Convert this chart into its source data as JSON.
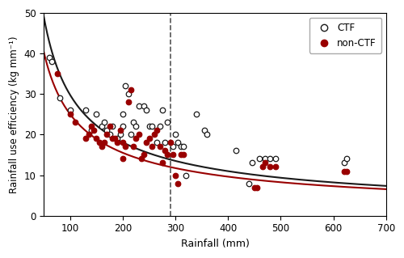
{
  "title": "",
  "xlabel": "Rainfall (mm)",
  "ylabel": "Rainfall use efficiency (kg mm⁻¹)",
  "xlim": [
    50,
    700
  ],
  "ylim": [
    0,
    50
  ],
  "xticks": [
    100,
    200,
    300,
    400,
    500,
    600,
    700
  ],
  "yticks": [
    0,
    10,
    20,
    30,
    40,
    50
  ],
  "vline_x": 290,
  "ctf_color": "#1a1a1a",
  "nonctf_color": "#990000",
  "ctf_scatter": [
    [
      60,
      39
    ],
    [
      65,
      38
    ],
    [
      80,
      29
    ],
    [
      100,
      26
    ],
    [
      130,
      26
    ],
    [
      140,
      21
    ],
    [
      150,
      25
    ],
    [
      160,
      22
    ],
    [
      165,
      23
    ],
    [
      170,
      21
    ],
    [
      175,
      20
    ],
    [
      180,
      22
    ],
    [
      190,
      19
    ],
    [
      195,
      20
    ],
    [
      200,
      25
    ],
    [
      200,
      22
    ],
    [
      205,
      32
    ],
    [
      210,
      30
    ],
    [
      215,
      20
    ],
    [
      220,
      23
    ],
    [
      225,
      22
    ],
    [
      230,
      27
    ],
    [
      240,
      27
    ],
    [
      245,
      26
    ],
    [
      250,
      22
    ],
    [
      255,
      22
    ],
    [
      265,
      18
    ],
    [
      270,
      22
    ],
    [
      275,
      26
    ],
    [
      280,
      18
    ],
    [
      285,
      23
    ],
    [
      295,
      17
    ],
    [
      300,
      20
    ],
    [
      305,
      18
    ],
    [
      310,
      17
    ],
    [
      315,
      17
    ],
    [
      320,
      10
    ],
    [
      340,
      25
    ],
    [
      355,
      21
    ],
    [
      360,
      20
    ],
    [
      415,
      16
    ],
    [
      440,
      8
    ],
    [
      445,
      13
    ],
    [
      460,
      14
    ],
    [
      470,
      14
    ],
    [
      480,
      14
    ],
    [
      490,
      14
    ],
    [
      620,
      13
    ],
    [
      625,
      14
    ]
  ],
  "nonctf_scatter": [
    [
      75,
      35
    ],
    [
      100,
      25
    ],
    [
      110,
      23
    ],
    [
      130,
      19
    ],
    [
      135,
      20
    ],
    [
      140,
      22
    ],
    [
      145,
      21
    ],
    [
      150,
      19
    ],
    [
      155,
      18
    ],
    [
      160,
      17
    ],
    [
      165,
      18
    ],
    [
      170,
      20
    ],
    [
      175,
      22
    ],
    [
      180,
      19
    ],
    [
      185,
      19
    ],
    [
      190,
      18
    ],
    [
      195,
      21
    ],
    [
      200,
      14
    ],
    [
      200,
      18
    ],
    [
      205,
      17
    ],
    [
      210,
      28
    ],
    [
      215,
      31
    ],
    [
      220,
      17
    ],
    [
      225,
      19
    ],
    [
      230,
      20
    ],
    [
      235,
      14
    ],
    [
      240,
      15
    ],
    [
      245,
      18
    ],
    [
      250,
      19
    ],
    [
      255,
      17
    ],
    [
      260,
      20
    ],
    [
      265,
      21
    ],
    [
      270,
      17
    ],
    [
      275,
      13
    ],
    [
      280,
      16
    ],
    [
      285,
      15
    ],
    [
      290,
      18
    ],
    [
      295,
      15
    ],
    [
      300,
      10
    ],
    [
      305,
      8
    ],
    [
      310,
      15
    ],
    [
      315,
      15
    ],
    [
      450,
      7
    ],
    [
      455,
      7
    ],
    [
      465,
      12
    ],
    [
      470,
      13
    ],
    [
      480,
      12
    ],
    [
      490,
      12
    ],
    [
      620,
      11
    ],
    [
      625,
      11
    ]
  ],
  "ctf_fit": {
    "a": 820,
    "b": -0.72
  },
  "nonctf_fit": {
    "a": 600,
    "b": -0.69
  }
}
